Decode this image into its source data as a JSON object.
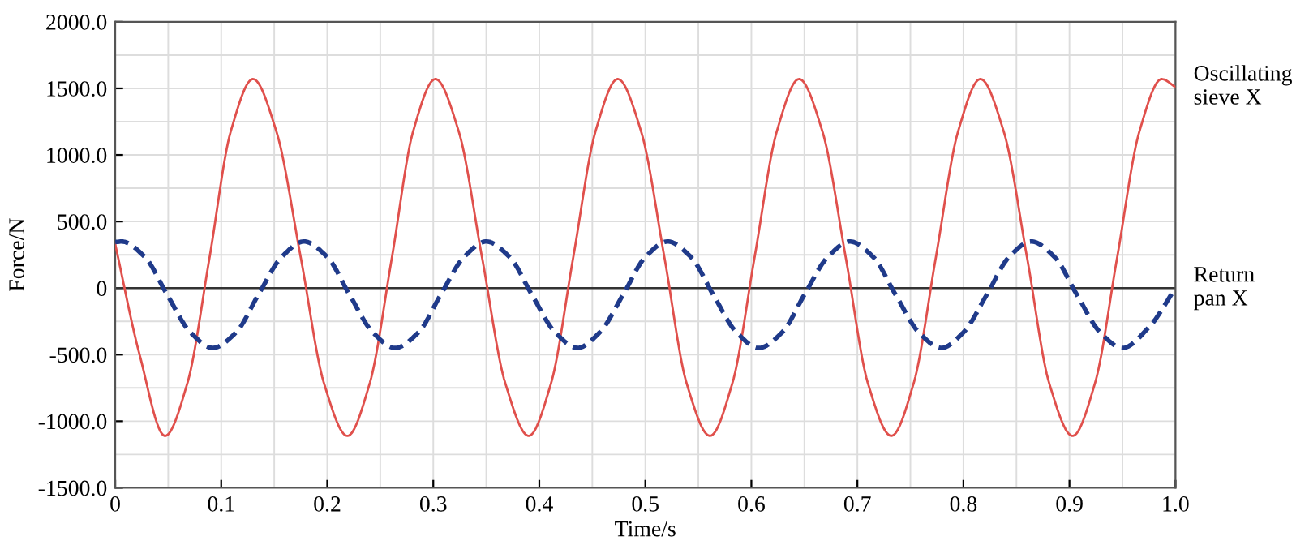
{
  "chart_data": {
    "type": "line",
    "xlabel": "Time/s",
    "ylabel": "Force/N",
    "xlim": [
      0,
      1.0
    ],
    "ylim": [
      -1500,
      2000
    ],
    "xticks": [
      {
        "value": 0,
        "label": "0"
      },
      0.1,
      0.2,
      0.3,
      0.4,
      0.5,
      0.6,
      0.7,
      0.8,
      0.9,
      {
        "value": 1.0,
        "label": "1.0"
      }
    ],
    "yticks": [
      {
        "value": -1500,
        "label": "-1500.0"
      },
      {
        "value": -1000,
        "label": "-1000.0"
      },
      {
        "value": -500,
        "label": "-500.0"
      },
      {
        "value": 0,
        "label": "0"
      },
      {
        "value": 500,
        "label": "500.0"
      },
      {
        "value": 1000,
        "label": "1000.0"
      },
      {
        "value": 1500,
        "label": "1500.0"
      },
      {
        "value": 2000,
        "label": "2000.0"
      }
    ],
    "grid": true,
    "legend": false,
    "ref_lines": [
      {
        "axis": "y",
        "value": 0,
        "color": "#333333",
        "line_style": "solid"
      }
    ],
    "series": [
      {
        "name": "Oscillating\nsieve X",
        "color": "#e0504c",
        "line_style": "solid",
        "x": [
          0,
          0.023,
          0.047,
          0.068,
          0.089,
          0.109,
          0.13,
          0.152,
          0.175,
          0.197,
          0.219,
          0.24,
          0.261,
          0.281,
          0.302,
          0.324,
          0.346,
          0.368,
          0.39,
          0.411,
          0.432,
          0.453,
          0.474,
          0.496,
          0.518,
          0.539,
          0.561,
          0.582,
          0.603,
          0.624,
          0.645,
          0.667,
          0.689,
          0.71,
          0.732,
          0.753,
          0.774,
          0.795,
          0.816,
          0.838,
          0.86,
          0.881,
          0.903,
          0.924,
          0.945,
          0.966,
          0.987,
          1.0
        ],
        "values": [
          330,
          -500,
          -1110,
          -717,
          230,
          1177,
          1570,
          1177,
          230,
          -717,
          -1110,
          -717,
          230,
          1177,
          1570,
          1177,
          230,
          -717,
          -1110,
          -717,
          230,
          1177,
          1570,
          1177,
          230,
          -717,
          -1110,
          -717,
          230,
          1177,
          1570,
          1177,
          230,
          -717,
          -1110,
          -717,
          230,
          1177,
          1570,
          1177,
          230,
          -717,
          -1110,
          -717,
          230,
          1177,
          1570,
          1510
        ]
      },
      {
        "name": "Return\npan X",
        "color": "#1f3a8a",
        "line_style": "dashed",
        "x": [
          0,
          0.006,
          0.028,
          0.049,
          0.071,
          0.092,
          0.114,
          0.135,
          0.157,
          0.178,
          0.2,
          0.221,
          0.243,
          0.264,
          0.286,
          0.307,
          0.329,
          0.35,
          0.372,
          0.393,
          0.415,
          0.436,
          0.457,
          0.479,
          0.5,
          0.521,
          0.543,
          0.564,
          0.586,
          0.607,
          0.629,
          0.65,
          0.672,
          0.693,
          0.715,
          0.736,
          0.758,
          0.779,
          0.8,
          0.822,
          0.843,
          0.864,
          0.886,
          0.907,
          0.929,
          0.95,
          0.975,
          1.0
        ],
        "values": [
          345,
          350,
          233,
          -50,
          -333,
          -450,
          -333,
          -50,
          233,
          350,
          233,
          -50,
          -333,
          -450,
          -333,
          -50,
          233,
          350,
          233,
          -50,
          -333,
          -450,
          -333,
          -50,
          233,
          350,
          233,
          -50,
          -333,
          -450,
          -333,
          -50,
          233,
          350,
          233,
          -50,
          -333,
          -450,
          -333,
          -50,
          233,
          350,
          233,
          -50,
          -333,
          -450,
          -294,
          0
        ]
      }
    ]
  }
}
